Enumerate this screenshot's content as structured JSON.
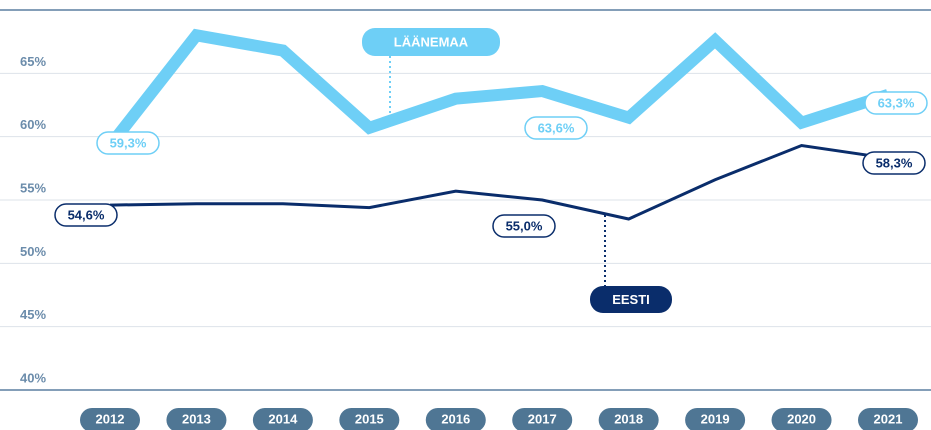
{
  "chart_data": {
    "type": "line",
    "categories": [
      "2012",
      "2013",
      "2014",
      "2015",
      "2016",
      "2017",
      "2018",
      "2019",
      "2020",
      "2021"
    ],
    "series": [
      {
        "name": "LÄÄNEMAA",
        "color": "#6ecff6",
        "values": [
          59.3,
          68.0,
          66.8,
          60.7,
          63.0,
          63.6,
          61.5,
          67.6,
          61.1,
          63.3
        ],
        "value_labels": [
          "59,3%",
          null,
          null,
          null,
          null,
          "63,6%",
          null,
          null,
          null,
          "63,3%"
        ]
      },
      {
        "name": "EESTI",
        "color": "#0a2d6b",
        "values": [
          54.6,
          54.7,
          54.7,
          54.4,
          55.7,
          55.0,
          53.5,
          56.6,
          59.3,
          58.3
        ],
        "value_labels": [
          "54,6%",
          null,
          null,
          null,
          null,
          "55,0%",
          null,
          null,
          null,
          "58,3%"
        ]
      }
    ],
    "ylim": [
      40,
      70
    ],
    "yticks": [
      {
        "value": 40,
        "label": "40%"
      },
      {
        "value": 45,
        "label": "45%"
      },
      {
        "value": 50,
        "label": "50%"
      },
      {
        "value": 55,
        "label": "55%"
      },
      {
        "value": 60,
        "label": "60%"
      },
      {
        "value": 65,
        "label": "65%"
      }
    ],
    "grid": true
  }
}
